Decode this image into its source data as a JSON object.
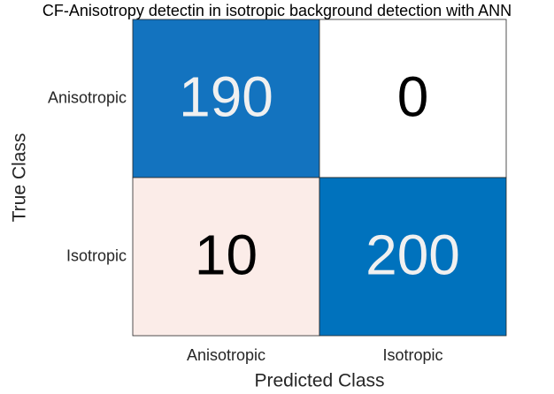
{
  "chart_data": {
    "type": "heatmap",
    "title": "CF-Anisotropy detectin in isotropic background detection with ANN",
    "xlabel": "Predicted Class",
    "ylabel": "True Class",
    "x_categories": [
      "Anisotropic",
      "Isotropic"
    ],
    "y_categories": [
      "Anisotropic",
      "Isotropic"
    ],
    "values": [
      [
        190,
        0
      ],
      [
        10,
        200
      ]
    ],
    "colors": [
      [
        "#1373bf",
        "#ffffff"
      ],
      [
        "#fbece8",
        "#0072bd"
      ]
    ]
  }
}
